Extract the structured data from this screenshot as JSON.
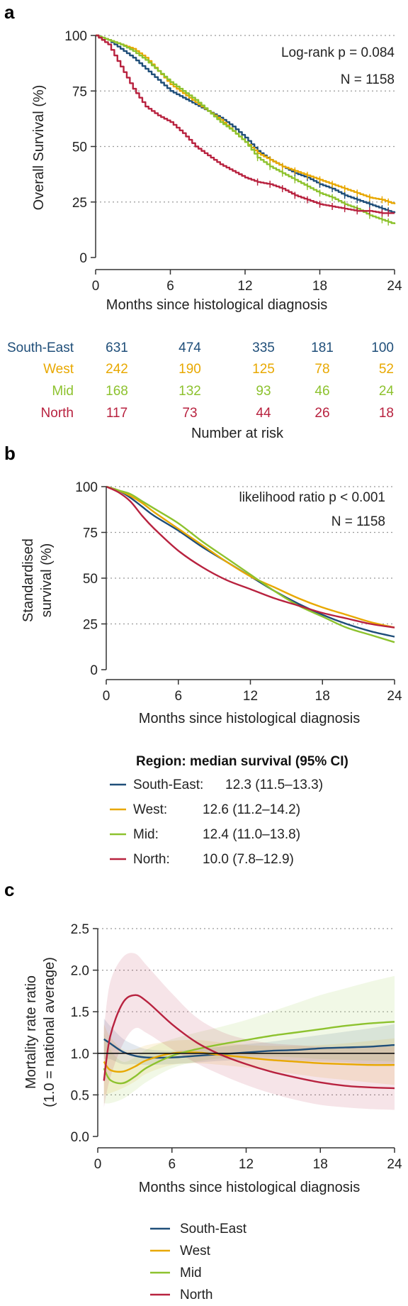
{
  "colors": {
    "South-East": "#1f4e79",
    "West": "#e8a800",
    "Mid": "#8dc22e",
    "North": "#b8223f",
    "axis": "#333333",
    "grid": "#999999"
  },
  "panels": {
    "a": {
      "letter": "a",
      "annotation_1": "Log-rank p = 0.084",
      "annotation_2": "N = 1158"
    },
    "b": {
      "letter": "b",
      "annotation_1": "likelihood ratio p < 0.001",
      "annotation_2": "N = 1158"
    },
    "c": {
      "letter": "c"
    }
  },
  "risk_table": {
    "title": "Number at risk",
    "times": [
      0,
      6,
      12,
      18,
      24
    ],
    "rows": [
      {
        "group": "South-East",
        "values": [
          "631",
          "474",
          "335",
          "181",
          "100"
        ]
      },
      {
        "group": "West",
        "values": [
          "242",
          "190",
          "125",
          "78",
          "52"
        ]
      },
      {
        "group": "Mid",
        "values": [
          "168",
          "132",
          "93",
          "46",
          "24"
        ]
      },
      {
        "group": "North",
        "values": [
          "117",
          "73",
          "44",
          "26",
          "18"
        ]
      }
    ]
  },
  "legend_b": {
    "title": "Region: median survival (95% CI)",
    "entries": [
      {
        "group": "South-East",
        "label": "South-East: 12.3 (11.5–13.3)"
      },
      {
        "group": "West",
        "label": "West:       12.6 (11.2–14.2)"
      },
      {
        "group": "Mid",
        "label": "Mid:         12.4 (11.0–13.8)"
      },
      {
        "group": "North",
        "label": "North:      10.0 (7.8–12.9)"
      }
    ]
  },
  "legend_c": {
    "entries": [
      {
        "group": "South-East",
        "label": "South-East"
      },
      {
        "group": "West",
        "label": "West"
      },
      {
        "group": "Mid",
        "label": "Mid"
      },
      {
        "group": "North",
        "label": "North"
      }
    ]
  },
  "chart_data": [
    {
      "id": "a",
      "type": "line",
      "subtype": "kaplan-meier",
      "title": "",
      "xlabel": "Months since histological diagnosis",
      "ylabel": "Overall Survival (%)",
      "xlim": [
        0,
        24
      ],
      "ylim": [
        0,
        100
      ],
      "xticks": [
        0,
        6,
        12,
        18,
        24
      ],
      "yticks": [
        0,
        25,
        50,
        75,
        100
      ],
      "grid": "horizontal dotted",
      "series": [
        {
          "name": "South-East",
          "x": [
            0,
            1,
            2,
            3,
            4,
            5,
            6,
            7,
            8,
            9,
            10,
            11,
            12,
            13,
            14,
            15,
            16,
            17,
            18,
            19,
            20,
            21,
            22,
            23,
            24
          ],
          "y": [
            100,
            98,
            94,
            90,
            85,
            80,
            75,
            72,
            69,
            66,
            63,
            59,
            54,
            48,
            44,
            41,
            38,
            36,
            33,
            31,
            28,
            26,
            24,
            22,
            20
          ]
        },
        {
          "name": "West",
          "x": [
            0,
            1,
            2,
            3,
            4,
            5,
            6,
            7,
            8,
            9,
            10,
            11,
            12,
            13,
            14,
            15,
            16,
            17,
            18,
            19,
            20,
            21,
            22,
            23,
            24
          ],
          "y": [
            100,
            98,
            96,
            94,
            90,
            84,
            78,
            74,
            70,
            66,
            62,
            57,
            52,
            47,
            44,
            41,
            39,
            37,
            35,
            33,
            31,
            29,
            27,
            26,
            24
          ]
        },
        {
          "name": "Mid",
          "x": [
            0,
            1,
            2,
            3,
            4,
            5,
            6,
            7,
            8,
            9,
            10,
            11,
            12,
            13,
            14,
            15,
            16,
            17,
            18,
            19,
            20,
            21,
            22,
            23,
            24
          ],
          "y": [
            100,
            98,
            96,
            93,
            89,
            84,
            79,
            75,
            71,
            66,
            61,
            57,
            52,
            45,
            41,
            38,
            35,
            32,
            29,
            27,
            24,
            22,
            19,
            17,
            15
          ]
        },
        {
          "name": "North",
          "x": [
            0,
            1,
            2,
            3,
            4,
            5,
            6,
            7,
            8,
            9,
            10,
            11,
            12,
            13,
            14,
            15,
            16,
            17,
            18,
            19,
            20,
            21,
            22,
            23,
            24
          ],
          "y": [
            100,
            96,
            86,
            76,
            68,
            64,
            61,
            56,
            50,
            46,
            42,
            39,
            36,
            34,
            33,
            31,
            28,
            26,
            24,
            23,
            22,
            21,
            21,
            20,
            20
          ]
        }
      ]
    },
    {
      "id": "b",
      "type": "line",
      "title": "",
      "xlabel": "Months since histological diagnosis",
      "ylabel": "Standardised survival (%)",
      "xlim": [
        0,
        24
      ],
      "ylim": [
        0,
        100
      ],
      "xticks": [
        0,
        6,
        12,
        18,
        24
      ],
      "yticks": [
        0,
        25,
        50,
        75,
        100
      ],
      "grid": "horizontal dotted",
      "series": [
        {
          "name": "South-East",
          "x": [
            0,
            1,
            2,
            3,
            4,
            6,
            8,
            10,
            12,
            14,
            16,
            18,
            20,
            22,
            24
          ],
          "y": [
            100,
            98,
            94,
            89,
            84,
            76,
            67,
            59,
            51,
            43,
            36,
            30,
            25,
            21,
            18
          ]
        },
        {
          "name": "West",
          "x": [
            0,
            1,
            2,
            3,
            4,
            6,
            8,
            10,
            12,
            14,
            16,
            18,
            20,
            22,
            24
          ],
          "y": [
            100,
            98,
            95,
            91,
            86,
            77,
            68,
            59,
            51,
            45,
            39,
            34,
            30,
            26,
            23
          ]
        },
        {
          "name": "Mid",
          "x": [
            0,
            1,
            2,
            3,
            4,
            6,
            8,
            10,
            12,
            14,
            16,
            18,
            20,
            22,
            24
          ],
          "y": [
            100,
            98,
            96,
            92,
            88,
            80,
            70,
            61,
            52,
            43,
            35,
            29,
            23,
            19,
            15
          ]
        },
        {
          "name": "North",
          "x": [
            0,
            1,
            2,
            3,
            4,
            6,
            8,
            10,
            12,
            14,
            16,
            18,
            20,
            22,
            24
          ],
          "y": [
            100,
            97,
            92,
            84,
            77,
            65,
            56,
            49,
            44,
            39,
            35,
            31,
            28,
            25,
            23
          ]
        }
      ]
    },
    {
      "id": "c",
      "type": "line",
      "subtype": "line-with-confidence-band",
      "title": "",
      "xlabel": "Months since histological diagnosis",
      "ylabel": "Mortality rate ratio (1.0 = national average)",
      "xlim": [
        0,
        24
      ],
      "ylim": [
        0,
        2.5
      ],
      "xticks": [
        0,
        6,
        12,
        18,
        24
      ],
      "yticks": [
        0.0,
        0.5,
        1.0,
        1.5,
        2.0,
        2.5
      ],
      "reference_line": 1.0,
      "grid": "horizontal dotted",
      "series": [
        {
          "name": "South-East",
          "x": [
            0.5,
            1,
            2,
            3,
            4,
            6,
            8,
            10,
            12,
            14,
            16,
            18,
            20,
            22,
            24
          ],
          "y": [
            1.17,
            1.12,
            1.02,
            0.97,
            0.95,
            0.95,
            0.97,
            0.99,
            1.01,
            1.03,
            1.04,
            1.06,
            1.07,
            1.08,
            1.1
          ],
          "lower": [
            0.93,
            0.93,
            0.87,
            0.87,
            0.86,
            0.87,
            0.89,
            0.91,
            0.92,
            0.92,
            0.91,
            0.9,
            0.89,
            0.87,
            0.86
          ],
          "upper": [
            1.42,
            1.33,
            1.18,
            1.1,
            1.05,
            1.03,
            1.05,
            1.08,
            1.11,
            1.14,
            1.18,
            1.22,
            1.26,
            1.3,
            1.35
          ]
        },
        {
          "name": "West",
          "x": [
            0.5,
            1,
            2,
            3,
            4,
            6,
            8,
            10,
            12,
            14,
            16,
            18,
            20,
            22,
            24
          ],
          "y": [
            0.9,
            0.8,
            0.78,
            0.84,
            0.92,
            1.0,
            1.01,
            0.98,
            0.95,
            0.92,
            0.9,
            0.88,
            0.87,
            0.86,
            0.86
          ],
          "lower": [
            0.5,
            0.52,
            0.58,
            0.66,
            0.76,
            0.86,
            0.88,
            0.86,
            0.83,
            0.79,
            0.75,
            0.71,
            0.68,
            0.65,
            0.62
          ],
          "upper": [
            1.35,
            1.2,
            1.05,
            1.05,
            1.1,
            1.15,
            1.16,
            1.13,
            1.1,
            1.09,
            1.09,
            1.1,
            1.12,
            1.15,
            1.18
          ]
        },
        {
          "name": "Mid",
          "x": [
            0.5,
            1,
            2,
            3,
            4,
            6,
            8,
            10,
            12,
            14,
            16,
            18,
            20,
            22,
            24
          ],
          "y": [
            0.82,
            0.68,
            0.64,
            0.72,
            0.83,
            0.97,
            1.05,
            1.11,
            1.16,
            1.21,
            1.25,
            1.29,
            1.33,
            1.36,
            1.38
          ],
          "lower": [
            0.4,
            0.4,
            0.45,
            0.55,
            0.66,
            0.82,
            0.9,
            0.94,
            0.96,
            0.96,
            0.95,
            0.93,
            0.92,
            0.91,
            0.9
          ],
          "upper": [
            1.25,
            1.05,
            0.9,
            0.95,
            1.05,
            1.17,
            1.25,
            1.32,
            1.4,
            1.5,
            1.6,
            1.7,
            1.78,
            1.86,
            1.93
          ]
        },
        {
          "name": "North",
          "x": [
            0.5,
            1,
            2,
            3,
            4,
            6,
            8,
            10,
            12,
            14,
            16,
            18,
            20,
            22,
            24
          ],
          "y": [
            0.67,
            1.2,
            1.6,
            1.7,
            1.62,
            1.35,
            1.13,
            0.98,
            0.87,
            0.78,
            0.71,
            0.65,
            0.61,
            0.59,
            0.58
          ],
          "lower": [
            0.35,
            0.7,
            1.1,
            1.3,
            1.24,
            1.05,
            0.88,
            0.74,
            0.62,
            0.52,
            0.44,
            0.38,
            0.35,
            0.33,
            0.32
          ],
          "upper": [
            1.3,
            1.85,
            2.15,
            2.2,
            2.05,
            1.72,
            1.43,
            1.26,
            1.17,
            1.12,
            1.1,
            1.08,
            1.08,
            1.08,
            1.08
          ]
        }
      ]
    }
  ]
}
